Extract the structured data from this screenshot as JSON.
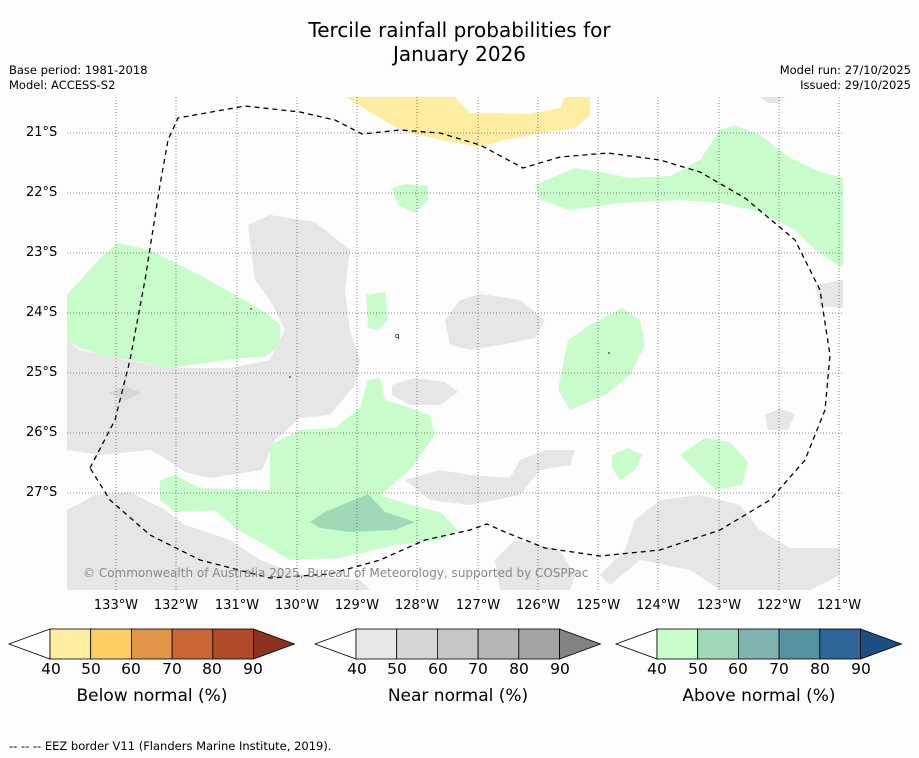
{
  "title_line1": "Tercile rainfall probabilities for",
  "title_line2": "January 2026",
  "base_period": "Base period: 1981-2018",
  "model": "Model: ACCESS-S2",
  "model_run": "Model run: 27/10/2025",
  "issued": "Issued: 29/10/2025",
  "lat_labels": [
    "21°S",
    "22°S",
    "23°S",
    "24°S",
    "25°S",
    "26°S",
    "27°S"
  ],
  "lon_labels": [
    "133°W",
    "132°W",
    "131°W",
    "130°W",
    "129°W",
    "128°W",
    "127°W",
    "126°W",
    "125°W",
    "124°W",
    "123°W",
    "122°W",
    "121°W"
  ],
  "copyright": "© Commonwealth of Australia 2025, Bureau of Meteorology, supported by COSPPac",
  "colorbars": [
    {
      "label": "Below normal (%)",
      "ticks": [
        "40",
        "50",
        "60",
        "70",
        "80",
        "90"
      ],
      "colors": [
        "#feeda0",
        "#fdce64",
        "#e09548",
        "#cc6535",
        "#b04a28",
        "#8c3220"
      ]
    },
    {
      "label": "Near normal (%)",
      "ticks": [
        "40",
        "50",
        "60",
        "70",
        "80",
        "90"
      ],
      "colors": [
        "#e6e6e6",
        "#d6d6d6",
        "#c6c6c6",
        "#b5b5b5",
        "#a3a3a3",
        "#828282"
      ]
    },
    {
      "label": "Above normal (%)",
      "ticks": [
        "40",
        "50",
        "60",
        "70",
        "80",
        "90"
      ],
      "colors": [
        "#c9fccb",
        "#a0d9b8",
        "#7fb3b0",
        "#5792a2",
        "#2e6599",
        "#1b4f82"
      ]
    }
  ],
  "footer": "--  --  -- EEZ border V11 (Flanders Marine Institute, 2019)."
}
